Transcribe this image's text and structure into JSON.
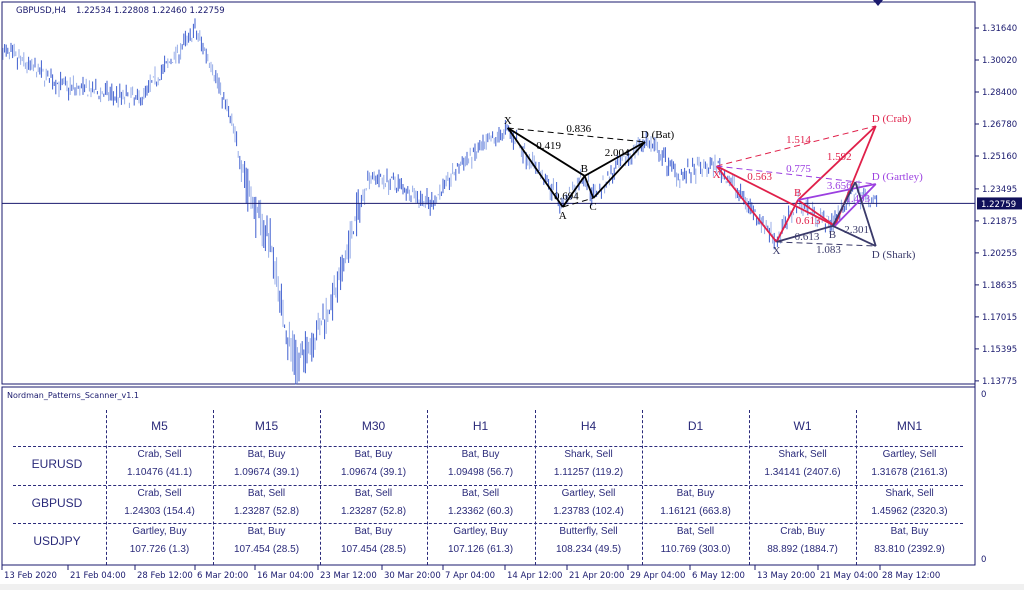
{
  "chart_header": {
    "symbol_timeframe": "GBPUSD,H4",
    "ohlc": "1.22534 1.22808 1.22460 1.22759"
  },
  "colors": {
    "bars_dark": "#3f5fd0",
    "bars_light": "#98aee8",
    "axis": "#1a1a6e",
    "bat": "#000000",
    "crab": "#e0204a",
    "gartley": "#9b3fe0",
    "shark": "#3a3a6a",
    "price_label_bg": "#10105a"
  },
  "chart_data": {
    "type": "ohlc",
    "symbol": "GBPUSD",
    "timeframe": "H4",
    "current_price": 1.22759,
    "current_price_label": "1.22759",
    "ylim": [
      1.1335,
      1.3245
    ],
    "y_ticks": [
      "1.31640",
      "1.30020",
      "1.28400",
      "1.26780",
      "1.25160",
      "1.23495",
      "1.21875",
      "1.20255",
      "1.18635",
      "1.17015",
      "1.15395",
      "1.13775"
    ],
    "x_ticks": [
      "13 Feb 2020",
      "21 Feb 04:00",
      "28 Feb 12:00",
      "6 Mar 20:00",
      "16 Mar 04:00",
      "23 Mar 12:00",
      "30 Mar 20:00",
      "7 Apr 04:00",
      "14 Apr 12:00",
      "21 Apr 20:00",
      "29 Apr 04:00",
      "6 May 12:00",
      "13 May 20:00",
      "21 May 04:00",
      "28 May 12:00"
    ],
    "price_outline": [
      [
        "2020-02-13T00:00",
        1.305
      ],
      [
        "2020-02-20T12:00",
        1.287
      ],
      [
        "2020-02-29T00:00",
        1.28
      ],
      [
        "2020-03-06T20:00",
        1.315
      ],
      [
        "2020-03-09T04:00",
        1.3
      ],
      [
        "2020-03-12T09:00",
        1.27
      ],
      [
        "2020-03-15T13:00",
        1.229
      ],
      [
        "2020-03-17T22:00",
        1.209
      ],
      [
        "2020-03-20T00:00",
        1.158
      ],
      [
        "2020-03-21T04:00",
        1.146
      ],
      [
        "2020-03-23T12:00",
        1.163
      ],
      [
        "2020-03-25T18:00",
        1.184
      ],
      [
        "2020-03-27T12:00",
        1.214
      ],
      [
        "2020-03-29T08:00",
        1.242
      ],
      [
        "2020-04-02T00:00",
        1.237
      ],
      [
        "2020-04-05T16:00",
        1.227
      ],
      [
        "2020-04-09T05:00",
        1.247
      ],
      [
        "2020-04-14T20:00",
        1.265
      ],
      [
        "2020-04-17T11:00",
        1.25
      ],
      [
        "2020-04-21T08:00",
        1.227
      ],
      [
        "2020-04-23T19:00",
        1.242
      ],
      [
        "2020-04-25T00:00",
        1.232
      ],
      [
        "2020-05-01T04:00",
        1.26
      ],
      [
        "2020-05-05T06:00",
        1.242
      ],
      [
        "2020-05-09T12:00",
        1.247
      ],
      [
        "2020-05-12T06:00",
        1.232
      ],
      [
        "2020-05-16T08:00",
        1.209
      ],
      [
        "2020-05-18T20:00",
        1.229
      ],
      [
        "2020-05-22T14:00",
        1.217
      ],
      [
        "2020-05-25T14:00",
        1.234
      ],
      [
        "2020-05-27T22:00",
        1.228
      ]
    ],
    "patterns": [
      {
        "name": "Bat",
        "color": "#000000",
        "points": {
          "X": [
            "2020-04-14T20:00",
            1.2658
          ],
          "A": [
            "2020-04-21T08:00",
            1.2258
          ],
          "B": [
            "2020-04-23T23:00",
            1.2415
          ],
          "C": [
            "2020-04-25T00:00",
            1.2303
          ],
          "D": [
            "2020-05-01T04:00",
            1.2587
          ]
        },
        "point_labels": {
          "X": "X",
          "A": "A",
          "B": "B",
          "C": "C",
          "D": "D (Bat)"
        },
        "solid": [
          [
            "X",
            "A"
          ],
          [
            "A",
            "B"
          ],
          [
            "B",
            "C"
          ],
          [
            "C",
            "D"
          ],
          [
            "X",
            "B"
          ],
          [
            "B",
            "D"
          ]
        ],
        "dashed": [
          [
            "X",
            "D"
          ],
          [
            "A",
            "C"
          ]
        ],
        "ratios": [
          {
            "seg": [
              "X",
              "D"
            ],
            "text": "0.836"
          },
          {
            "seg": [
              "X",
              "B"
            ],
            "text": "0.419"
          },
          {
            "seg": [
              "B",
              "D"
            ],
            "text": "2.004"
          },
          {
            "seg": [
              "A",
              "C"
            ],
            "text": "0.694"
          }
        ]
      },
      {
        "name": "Crab",
        "color": "#e0204a",
        "points": {
          "X": [
            "2020-05-09T12:00",
            1.2465
          ],
          "A": [
            "2020-05-16T08:00",
            1.2081
          ],
          "B": [
            "2020-05-18T20:00",
            1.2293
          ],
          "C": [
            "2020-05-23T04:00",
            1.2162
          ],
          "D": [
            "2020-05-28T00:00",
            1.2668
          ]
        },
        "point_labels": {
          "X": "X",
          "B": "B",
          "D": "D (Crab)"
        },
        "solid": [
          [
            "X",
            "A"
          ],
          [
            "A",
            "B"
          ],
          [
            "B",
            "C"
          ],
          [
            "C",
            "D"
          ],
          [
            "X",
            "C"
          ],
          [
            "B",
            "D"
          ]
        ],
        "dashed": [
          [
            "X",
            "D"
          ]
        ],
        "ratios": [
          {
            "seg": [
              "X",
              "D"
            ],
            "text": "1.514"
          },
          {
            "seg": [
              "B",
              "D"
            ],
            "text": "1.592"
          },
          {
            "seg": [
              "X",
              "B"
            ],
            "text": "0.563"
          },
          {
            "seg": [
              "A",
              "C"
            ],
            "text": "0.613"
          }
        ]
      },
      {
        "name": "Gartley",
        "color": "#9b3fe0",
        "points": {
          "X": [
            "2020-05-09T12:00",
            1.2465
          ],
          "B": [
            "2020-05-18T20:00",
            1.2293
          ],
          "C": [
            "2020-05-23T04:00",
            1.2162
          ],
          "D": [
            "2020-05-28T00:00",
            1.2374
          ]
        },
        "point_labels": {
          "D": "D (Gartley)"
        },
        "solid": [
          [
            "B",
            "D"
          ],
          [
            "C",
            "D"
          ]
        ],
        "dashed": [
          [
            "X",
            "D"
          ]
        ],
        "ratios": [
          {
            "seg": [
              "X",
              "D"
            ],
            "text": "0.775"
          },
          {
            "seg": [
              "B",
              "D"
            ],
            "text": "3.656"
          },
          {
            "seg": [
              "C",
              "D"
            ],
            "text": "1.493"
          }
        ]
      },
      {
        "name": "Shark",
        "color": "#3a3a6a",
        "points": {
          "X": [
            "2020-05-16T08:00",
            1.2081
          ],
          "B": [
            "2020-05-22T22:00",
            1.2162
          ],
          "C": [
            "2020-05-25T14:00",
            1.2384
          ],
          "D": [
            "2020-05-28T00:00",
            1.206
          ]
        },
        "point_labels": {
          "X": "X",
          "B": "B",
          "D": "D (Shark)"
        },
        "solid": [
          [
            "X",
            "B"
          ],
          [
            "B",
            "C"
          ],
          [
            "C",
            "D"
          ],
          [
            "B",
            "D"
          ]
        ],
        "dashed": [
          [
            "X",
            "D"
          ]
        ],
        "ratios": [
          {
            "seg": [
              "X",
              "B"
            ],
            "text": "0.613"
          },
          {
            "seg": [
              "B",
              "D"
            ],
            "text": "2.301"
          },
          {
            "seg": [
              "X",
              "D"
            ],
            "text": "1.083"
          }
        ]
      }
    ]
  },
  "indicator": {
    "name": "Nordman_Patterns_Scanner_v1.1",
    "scale_top": "0",
    "scale_bottom": "0"
  },
  "scanner": {
    "timeframes": [
      "M5",
      "M15",
      "M30",
      "H1",
      "H4",
      "D1",
      "W1",
      "MN1"
    ],
    "rows": [
      {
        "symbol": "EURUSD",
        "cells": [
          [
            "Crab, Sell",
            "1.10476 (41.1)"
          ],
          [
            "Bat, Buy",
            "1.09674 (39.1)"
          ],
          [
            "Bat, Buy",
            "1.09674 (39.1)"
          ],
          [
            "Bat, Buy",
            "1.09498 (56.7)"
          ],
          [
            "Shark, Sell",
            "1.11257 (119.2)"
          ],
          [
            "",
            ""
          ],
          [
            "Shark, Sell",
            "1.34141 (2407.6)"
          ],
          [
            "Gartley, Sell",
            "1.31678 (2161.3)"
          ]
        ]
      },
      {
        "symbol": "GBPUSD",
        "cells": [
          [
            "Crab, Sell",
            "1.24303 (154.4)"
          ],
          [
            "Bat, Sell",
            "1.23287 (52.8)"
          ],
          [
            "Bat, Sell",
            "1.23287 (52.8)"
          ],
          [
            "Bat, Sell",
            "1.23362 (60.3)"
          ],
          [
            "Gartley, Sell",
            "1.23783 (102.4)"
          ],
          [
            "Bat, Buy",
            "1.16121 (663.8)"
          ],
          [
            "",
            ""
          ],
          [
            "Shark, Sell",
            "1.45962 (2320.3)"
          ]
        ]
      },
      {
        "symbol": "USDJPY",
        "cells": [
          [
            "Gartley, Buy",
            "107.726 (1.3)"
          ],
          [
            "Bat, Buy",
            "107.454 (28.5)"
          ],
          [
            "Bat, Buy",
            "107.454 (28.5)"
          ],
          [
            "Gartley, Buy",
            "107.126 (61.3)"
          ],
          [
            "Butterfly, Sell",
            "108.234 (49.5)"
          ],
          [
            "Bat, Sell",
            "110.769 (303.0)"
          ],
          [
            "Crab, Buy",
            "88.892 (1884.7)"
          ],
          [
            "Bat, Buy",
            "83.810 (2392.9)"
          ]
        ]
      }
    ]
  }
}
